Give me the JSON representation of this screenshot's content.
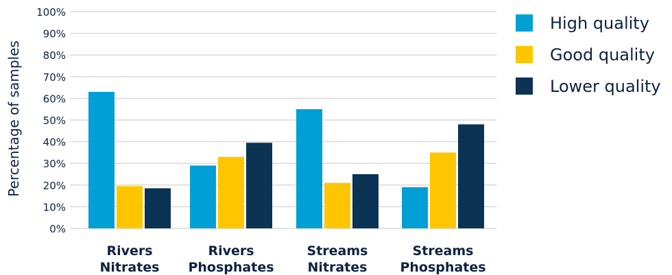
{
  "chart_data": {
    "type": "bar",
    "categories": [
      [
        "Rivers",
        "Nitrates"
      ],
      [
        "Rivers",
        "Phosphates"
      ],
      [
        "Streams",
        "Nitrates"
      ],
      [
        "Streams",
        "Phosphates"
      ]
    ],
    "series": [
      {
        "name": "High quality",
        "color": "#00a0d6",
        "values": [
          63,
          29,
          55,
          19
        ]
      },
      {
        "name": "Good quality",
        "color": "#ffc600",
        "values": [
          19.5,
          33,
          21,
          35
        ]
      },
      {
        "name": "Lower quality",
        "color": "#0b3353",
        "values": [
          18.5,
          39.5,
          25,
          48
        ]
      }
    ],
    "ylabel": "Percentage of samples",
    "ylim": [
      0,
      100
    ],
    "yticks": [
      0,
      10,
      20,
      30,
      40,
      50,
      60,
      70,
      80,
      90,
      100
    ],
    "ytick_suffix": "%",
    "grid": true,
    "legend_position": "right"
  }
}
